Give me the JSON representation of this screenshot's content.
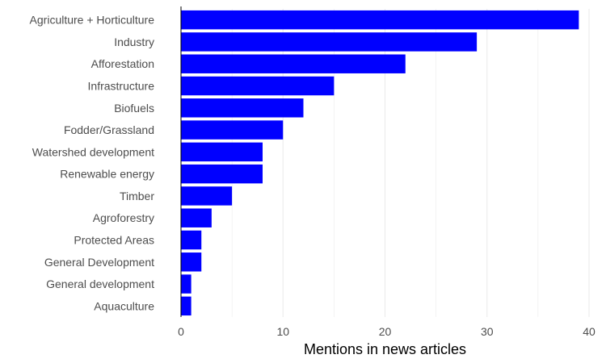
{
  "chart_data": {
    "type": "bar",
    "orientation": "horizontal",
    "title": "",
    "xlabel": "Mentions in news articles",
    "ylabel": "",
    "categories": [
      "Agriculture + Horticulture",
      "Industry",
      "Afforestation",
      "Infrastructure",
      "Biofuels",
      "Fodder/Grassland",
      "Watershed development",
      "Renewable energy",
      "Timber",
      "Agroforestry",
      "Protected Areas",
      "General Development",
      "General development",
      "Aquaculture"
    ],
    "values": [
      39,
      29,
      22,
      15,
      12,
      10,
      8,
      8,
      5,
      3,
      2,
      2,
      1,
      1
    ],
    "xlim": [
      0,
      40
    ],
    "xticks": [
      "0",
      "10",
      "20",
      "30",
      "40"
    ],
    "grid": true,
    "legend": "none",
    "colors": {
      "bar": "#0000ff",
      "grid": "#ebebeb",
      "axis": "#000000"
    }
  }
}
